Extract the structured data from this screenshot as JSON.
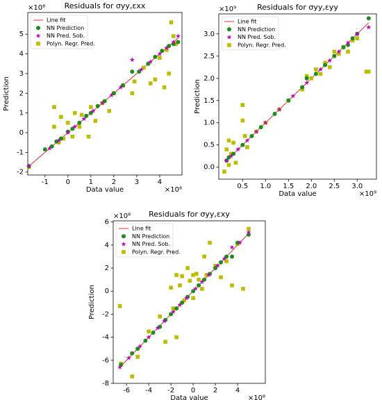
{
  "chart_data": [
    {
      "type": "scatter",
      "title": "Residuals for σyy,εxx",
      "xlabel": "Data value",
      "ylabel": "Prediction",
      "x_offset_label": "×10⁸",
      "y_offset_label": "×10⁸",
      "legend": "upper left",
      "xlim": [
        -1.75,
        4.97
      ],
      "ylim": [
        -2.15,
        6.1
      ],
      "xticks": [
        -1,
        0,
        1,
        2,
        3,
        4
      ],
      "yticks": [
        -2,
        -1,
        0,
        1,
        2,
        3,
        4,
        5
      ],
      "series": [
        {
          "name": "Line fit",
          "color": "#e03030",
          "marker": "line",
          "x": [
            -1.7,
            4.8
          ],
          "values": [
            -1.7,
            4.8
          ]
        },
        {
          "name": "NN Prediction",
          "color": "#1f8a1f",
          "marker": "o",
          "x": [
            -1.7,
            -1.0,
            -0.7,
            -0.5,
            -0.3,
            0,
            0.2,
            0.5,
            0.8,
            1.0,
            1.3,
            1.6,
            2.0,
            2.4,
            2.8,
            3.1,
            3.5,
            3.8,
            4.1,
            4.4,
            4.6,
            4.8
          ],
          "values": [
            -1.7,
            -0.85,
            -0.7,
            -0.45,
            -0.3,
            0.05,
            0.2,
            0.5,
            0.85,
            1.0,
            1.35,
            1.6,
            2.0,
            2.4,
            3.1,
            3.1,
            3.5,
            3.85,
            4.15,
            4.4,
            4.5,
            4.6
          ]
        },
        {
          "name": "NN Pred. Sob.",
          "color": "#c000c0",
          "marker": "*",
          "x": [
            -1.7,
            -0.8,
            -0.4,
            0,
            0.3,
            0.7,
            1.1,
            1.5,
            1.9,
            2.3,
            2.8,
            3.2,
            3.6,
            4.0,
            4.3,
            4.6,
            4.8
          ],
          "values": [
            -1.7,
            -0.8,
            -0.4,
            0,
            0.3,
            0.7,
            1.1,
            1.5,
            1.9,
            2.3,
            3.7,
            3.2,
            3.6,
            4.0,
            4.3,
            4.6,
            4.9
          ]
        },
        {
          "name": "Polyn. Regr. Pred.",
          "color": "#bcbc00",
          "marker": "s",
          "x": [
            -1.7,
            -0.6,
            -0.6,
            -0.4,
            -0.3,
            -0.2,
            0,
            0.2,
            0.3,
            0.5,
            0.6,
            0.9,
            1.0,
            1.2,
            1.5,
            1.8,
            2.0,
            2.4,
            2.8,
            2.9,
            3.3,
            3.6,
            3.8,
            4.0,
            4.2,
            4.3,
            4.4,
            4.5,
            4.6,
            4.7
          ],
          "values": [
            -1.75,
            0.3,
            1.3,
            -0.5,
            0.8,
            -0.3,
            0.5,
            -0.2,
            1.0,
            0.3,
            0.9,
            -0.2,
            1.3,
            0.6,
            1.5,
            1.1,
            2.0,
            2.4,
            2.0,
            2.6,
            3.3,
            2.5,
            2.7,
            3.8,
            2.3,
            4.2,
            3.0,
            5.6,
            4.9,
            4.5
          ]
        }
      ]
    },
    {
      "type": "scatter",
      "title": "Residuals for σyy,εyy",
      "xlabel": "Data value",
      "ylabel": "Prediction",
      "x_offset_label": "×10⁹",
      "y_offset_label": "×10⁹",
      "legend": "upper left",
      "xlim": [
        -0.02,
        3.42
      ],
      "ylim": [
        -0.27,
        3.45
      ],
      "xticks": [
        0.5,
        {
          "value": 1,
          "label": "1.0"
        },
        1.5,
        {
          "value": 2,
          "label": "2.0"
        },
        2.5,
        {
          "value": 3,
          "label": "3.0"
        }
      ],
      "yticks": [
        {
          "value": 0,
          "label": "0.0"
        },
        0.5,
        {
          "value": 1,
          "label": "1.0"
        },
        1.5,
        {
          "value": 2,
          "label": "2.0"
        },
        2.5,
        {
          "value": 3,
          "label": "3.0"
        }
      ],
      "series": [
        {
          "name": "Line fit",
          "color": "#e03030",
          "marker": "line",
          "x": [
            0.12,
            3.25
          ],
          "values": [
            0.12,
            3.25
          ]
        },
        {
          "name": "NN Prediction",
          "color": "#1f8a1f",
          "marker": "o",
          "x": [
            0.15,
            0.2,
            0.3,
            0.5,
            0.7,
            0.9,
            1.2,
            1.5,
            1.8,
            1.9,
            2.1,
            2.3,
            2.5,
            2.7,
            2.8,
            2.9,
            3.0,
            3.25
          ],
          "values": [
            0.15,
            0.22,
            0.3,
            0.5,
            0.7,
            0.9,
            1.2,
            1.5,
            1.8,
            2.0,
            2.1,
            2.3,
            2.5,
            2.7,
            2.75,
            2.9,
            3.0,
            3.35
          ]
        },
        {
          "name": "NN Pred. Sob.",
          "color": "#c000c0",
          "marker": "*",
          "x": [
            0.15,
            0.25,
            0.4,
            0.6,
            0.8,
            1.0,
            1.3,
            1.6,
            1.9,
            2.2,
            2.4,
            2.6,
            2.8,
            3.0,
            3.25
          ],
          "values": [
            0.15,
            0.25,
            0.4,
            0.6,
            0.8,
            1.0,
            1.3,
            1.6,
            1.9,
            2.2,
            2.4,
            2.6,
            2.8,
            3.0,
            3.15
          ]
        },
        {
          "name": "Polyn. Regr. Pred.",
          "color": "#bcbc00",
          "marker": "s",
          "x": [
            0.1,
            0.15,
            0.2,
            0.2,
            0.25,
            0.3,
            0.35,
            0.5,
            0.5,
            0.55,
            0.6,
            0.8,
            1.0,
            1.3,
            1.5,
            1.8,
            1.9,
            2.0,
            2.1,
            2.2,
            2.3,
            2.4,
            2.5,
            2.6,
            2.7,
            2.8,
            2.9,
            3.0,
            3.2,
            3.25
          ],
          "values": [
            -0.1,
            0.4,
            0.05,
            0.6,
            0.3,
            0.55,
            0.1,
            1.4,
            1.05,
            0.7,
            0.45,
            0.8,
            1.0,
            1.3,
            1.5,
            1.75,
            2.05,
            2.0,
            2.2,
            2.1,
            2.35,
            2.25,
            2.6,
            2.55,
            2.7,
            2.6,
            2.85,
            2.9,
            2.15,
            2.15
          ]
        }
      ]
    },
    {
      "type": "scatter",
      "title": "Residuals for σyy,εxy",
      "xlabel": "Data value",
      "ylabel": "Prediction",
      "x_offset_label": "×10⁸",
      "y_offset_label": "×10⁸",
      "legend": "upper left",
      "xlim": [
        -7.2,
        6.5
      ],
      "ylim": [
        -8.0,
        6.1
      ],
      "xticks": [
        -6,
        -4,
        -2,
        0,
        2,
        4
      ],
      "yticks": [
        -8,
        -6,
        -4,
        -2,
        0,
        2,
        4,
        6
      ],
      "series": [
        {
          "name": "Line fit",
          "color": "#e03030",
          "marker": "line",
          "x": [
            -6.6,
            5.0
          ],
          "values": [
            -6.6,
            5.0
          ]
        },
        {
          "name": "NN Prediction",
          "color": "#1f8a1f",
          "marker": "o",
          "x": [
            -6.5,
            -5.5,
            -5,
            -4.3,
            -3.6,
            -3,
            -2.5,
            -2,
            -1.5,
            -1,
            -0.5,
            0,
            0.5,
            1,
            1.5,
            2,
            2.5,
            3,
            3.5,
            4,
            5
          ],
          "values": [
            -6.4,
            -5.4,
            -5.0,
            -4.3,
            -3.6,
            -3.1,
            -2.5,
            -2.0,
            -1.5,
            -1.0,
            -0.5,
            0.0,
            0.5,
            1.0,
            1.5,
            2.0,
            2.5,
            3.0,
            3.0,
            4.2,
            4.9
          ]
        },
        {
          "name": "NN Pred. Sob.",
          "color": "#c000c0",
          "marker": "*",
          "x": [
            -6.6,
            -5.8,
            -4.8,
            -4,
            -3.2,
            -2.6,
            -1.8,
            -1.2,
            -0.6,
            0.2,
            0.8,
            1.4,
            2.2,
            2.8,
            3.5,
            4.2,
            5
          ],
          "values": [
            -6.6,
            -5.8,
            -4.8,
            -4.0,
            -3.2,
            -2.6,
            -1.8,
            -1.2,
            -0.6,
            0.2,
            0.8,
            1.4,
            2.2,
            2.8,
            3.8,
            4.2,
            5.1
          ]
        },
        {
          "name": "Polyn. Regr. Pred.",
          "color": "#bcbc00",
          "marker": "s",
          "x": [
            -6.6,
            -6.5,
            -5.5,
            -5,
            -4,
            -3,
            -2.5,
            -2,
            -1.8,
            -1.5,
            -1.5,
            -1.2,
            -1,
            -0.8,
            -0.5,
            -0.3,
            0,
            0,
            0.3,
            0.5,
            0.8,
            1,
            1.2,
            1.5,
            2,
            2.5,
            3,
            3.5,
            4,
            4.5,
            5
          ],
          "values": [
            -1.3,
            -6.3,
            -7.4,
            -5.7,
            -3.5,
            -2.2,
            -4.4,
            0.3,
            -1.5,
            1.4,
            -4.0,
            0.5,
            1.3,
            -0.8,
            2.0,
            0.9,
            1.4,
            -0.6,
            1.5,
            1.0,
            0.2,
            3.0,
            1.4,
            4.2,
            2.2,
            1.2,
            2.6,
            0.5,
            4.1,
            0.2,
            5.4
          ]
        }
      ]
    }
  ]
}
